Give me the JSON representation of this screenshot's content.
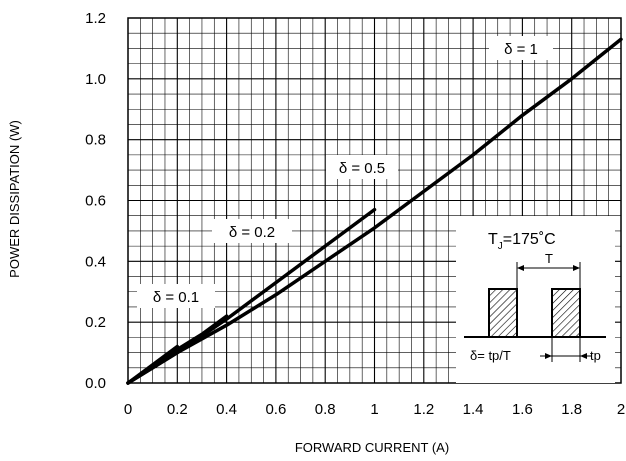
{
  "chart_data": {
    "type": "line",
    "xlabel": "FORWARD CURRENT (A)",
    "ylabel": "POWER DISSIPATION (W)",
    "xlim": [
      0,
      2
    ],
    "ylim": [
      0,
      1.2
    ],
    "x_ticks": [
      "0",
      "0.2",
      "0.4",
      "0.6",
      "0.8",
      "1",
      "1.2",
      "1.4",
      "1.6",
      "1.8",
      "2"
    ],
    "y_ticks": [
      "0.0",
      "0.2",
      "0.4",
      "0.6",
      "0.8",
      "1.0",
      "1.2"
    ],
    "grid": true,
    "series": [
      {
        "name": "δ = 1",
        "x": [
          0,
          0.1,
          0.2,
          0.4,
          0.6,
          0.8,
          1.0,
          1.2,
          1.4,
          1.6,
          1.8,
          2.0
        ],
        "y": [
          0,
          0.05,
          0.1,
          0.19,
          0.29,
          0.4,
          0.51,
          0.63,
          0.75,
          0.88,
          1.0,
          1.13
        ]
      },
      {
        "name": "δ = 0.5",
        "x": [
          0,
          0.1,
          0.2,
          0.4,
          0.6,
          0.8,
          1.0
        ],
        "y": [
          0,
          0.05,
          0.1,
          0.21,
          0.33,
          0.45,
          0.57
        ]
      },
      {
        "name": "δ = 0.2",
        "x": [
          0,
          0.1,
          0.2,
          0.3,
          0.4
        ],
        "y": [
          0,
          0.055,
          0.11,
          0.16,
          0.22
        ]
      },
      {
        "name": "δ = 0.1",
        "x": [
          0,
          0.1,
          0.2
        ],
        "y": [
          0,
          0.06,
          0.12
        ]
      }
    ],
    "annotation": {
      "tj_label": "T",
      "tj_subscript": "J",
      "tj_value": "=175˚C",
      "period_label": "T",
      "duty_label": "δ= tp/T",
      "tp_label": "tp"
    }
  }
}
